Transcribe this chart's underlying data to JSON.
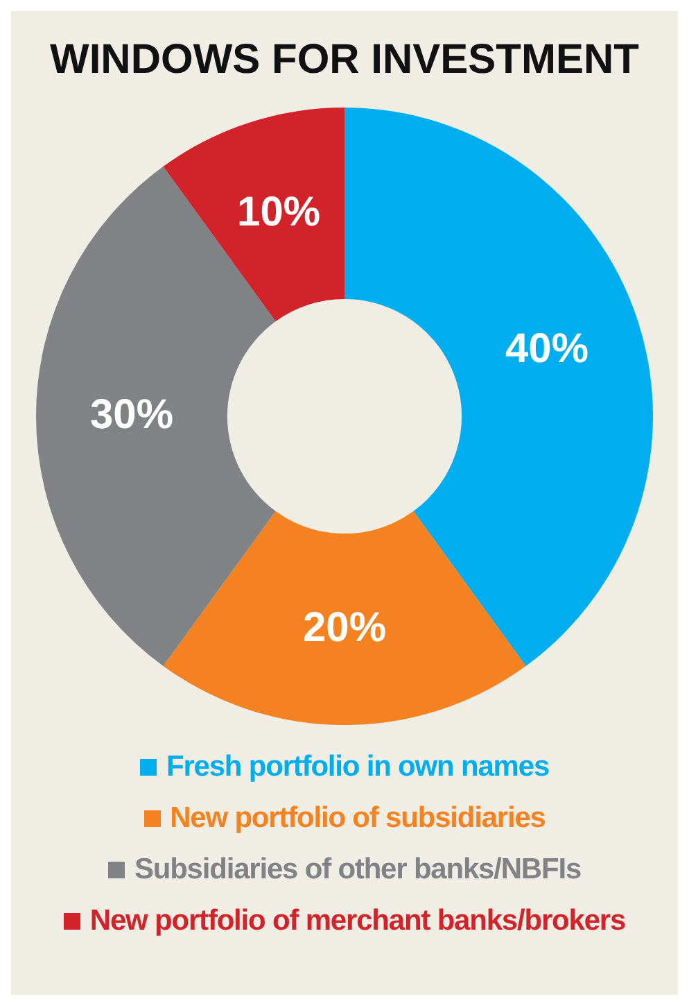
{
  "chart_data": {
    "type": "donut",
    "title": "WINDOWS FOR INVESTMENT",
    "categories": [
      "Fresh portfolio in own names",
      "New portfolio of subsidiaries",
      "Subsidiaries of other banks/NBFIs",
      "New portfolio of merchant banks/brokers"
    ],
    "values": [
      40,
      20,
      30,
      10
    ],
    "colors": [
      "#00aeef",
      "#f58220",
      "#808285",
      "#d2232a"
    ],
    "value_labels": [
      "40%",
      "20%",
      "30%",
      "10%"
    ],
    "legend": "bottom"
  }
}
